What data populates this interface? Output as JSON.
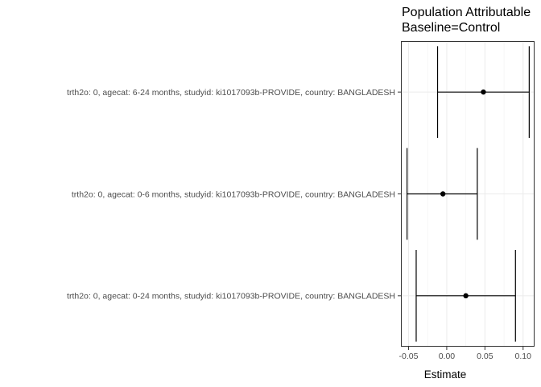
{
  "chart_data": {
    "type": "forest",
    "title": "Population Attributable",
    "subtitle": "Baseline=Control",
    "xlabel": "Estimate",
    "ylabel": "",
    "xlim": [
      -0.06,
      0.115
    ],
    "xticks": [
      -0.05,
      0.0,
      0.05,
      0.1
    ],
    "xtick_labels": [
      "-0.05",
      "0.00",
      "0.05",
      "0.10"
    ],
    "grid": true,
    "rows": [
      {
        "label": "trth2o: 0, agecat: 6-24 months, studyid: ki1017093b-PROVIDE, country: BANGLADESH",
        "estimate": 0.048,
        "lower": -0.012,
        "upper": 0.108
      },
      {
        "label": "trth2o: 0, agecat: 0-6 months, studyid: ki1017093b-PROVIDE, country: BANGLADESH",
        "estimate": -0.005,
        "lower": -0.052,
        "upper": 0.04
      },
      {
        "label": "trth2o: 0, agecat: 0-24 months, studyid: ki1017093b-PROVIDE, country: BANGLADESH",
        "estimate": 0.025,
        "lower": -0.04,
        "upper": 0.09
      }
    ]
  }
}
